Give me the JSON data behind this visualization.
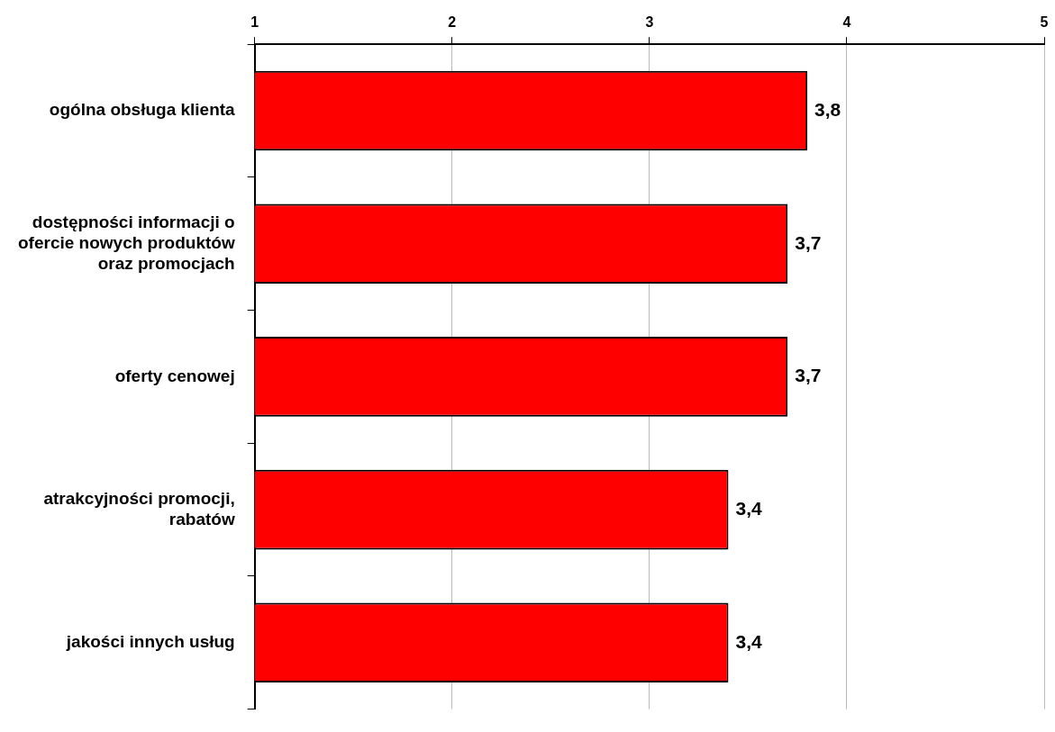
{
  "chart_data": {
    "type": "bar",
    "orientation": "horizontal",
    "categories": [
      "ogólna obsługa klienta",
      "dostępności informacji o ofercie nowych produktów oraz promocjach",
      "oferty cenowej",
      "atrakcyjności promocji, rabatów",
      "jakości innych usług"
    ],
    "values": [
      3.8,
      3.7,
      3.7,
      3.4,
      3.4
    ],
    "value_labels": [
      "3,8",
      "3,7",
      "3,7",
      "3,4",
      "3,4"
    ],
    "color": "#ff0000",
    "xlim": [
      1,
      5
    ],
    "xticks": [
      1,
      2,
      3,
      4,
      5
    ],
    "grid": "x",
    "legend": false
  }
}
